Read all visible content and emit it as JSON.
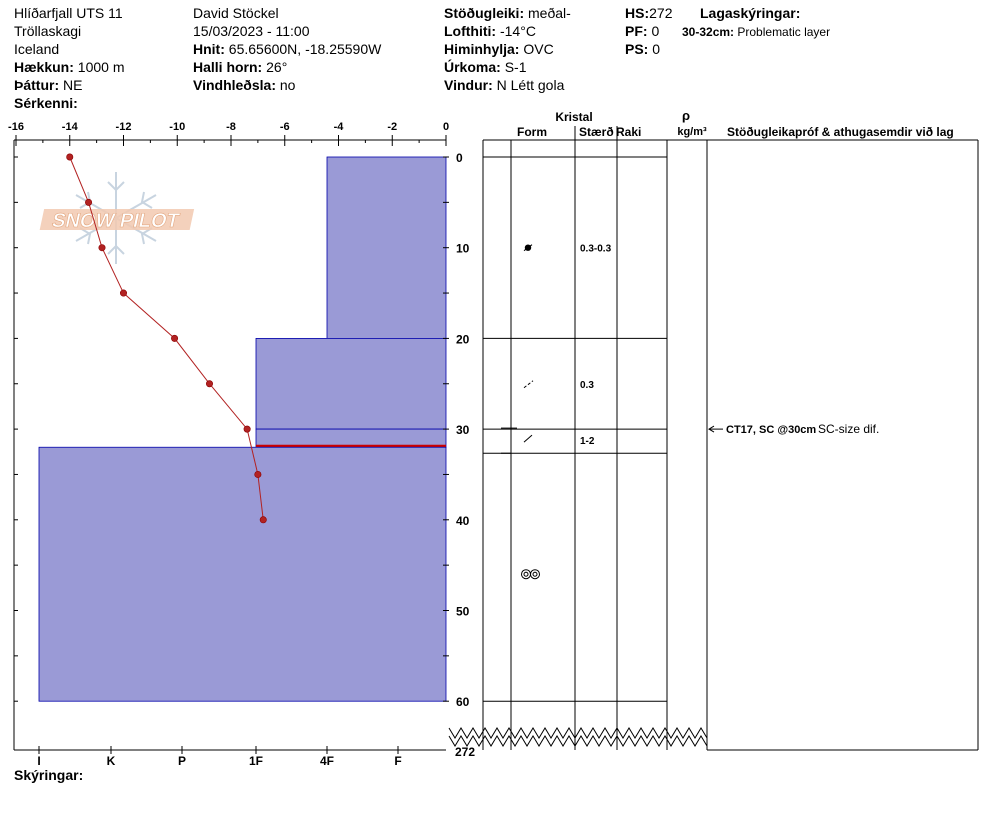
{
  "header": {
    "location": "Hlíðarfjall UTS 11",
    "region": "Tröllaskagi",
    "country": "Iceland",
    "elevation_label": "Hækkun:",
    "elevation_value": "1000 m",
    "aspect_label": "Þáttur:",
    "aspect_value": "NE",
    "features_label": "Sérkenni:",
    "features_value": "",
    "observer": "David Stöckel",
    "datetime": "15/03/2023 - 11:00",
    "coords_label": "Hnit:",
    "coords_value": "65.65600N, -18.25590W",
    "slope_label": "Halli horn:",
    "slope_value": "26°",
    "wind_loading_label": "Vindhleðsla:",
    "wind_loading_value": "no",
    "stability_label": "Stöðugleiki:",
    "stability_value": "meðal-",
    "airtemp_label": "Lofthiti:",
    "airtemp_value": "-14°C",
    "sky_label": "Himinhylja:",
    "sky_value": "OVC",
    "precip_label": "Úrkoma:",
    "precip_value": "S-1",
    "wind_label": "Vindur:",
    "wind_value": "N Létt gola",
    "hs_label": "HS:",
    "hs_value": "272",
    "pf_label": "PF:",
    "pf_value": "0",
    "ps_label": "PS:",
    "ps_value": "0",
    "layer_notes_title": "Lagaskýringar:",
    "layer_note_range": "30-32cm:",
    "layer_note_text": "Problematic layer"
  },
  "watermark": "SNOW PILOT",
  "footer": {
    "legend_label": "Skýringar:"
  },
  "columns": {
    "crystal_title": "Kristal",
    "form": "Form",
    "size": "Stærð",
    "moisture": "Raki",
    "density_symbol": "ρ",
    "density_unit": "kg/m³",
    "remarks": "Stöðugleikapróf & athugasemdir við lag"
  },
  "colors": {
    "layer_fill": "#9a9ad6",
    "layer_stroke": "#0000aa",
    "temp_line": "#b22222",
    "problem_layer": "#cc0000"
  },
  "chart_data": {
    "type": "line",
    "temperature_axis": {
      "ticks": [
        -16,
        -14,
        -12,
        -10,
        -8,
        -6,
        -4,
        -2,
        0
      ],
      "range": [
        -16,
        0
      ]
    },
    "depth_axis": {
      "ticks": [
        0,
        10,
        20,
        30,
        40,
        50,
        60
      ],
      "range": [
        0,
        60
      ],
      "bottom_label": "272"
    },
    "hardness_axis": {
      "ticks": [
        "I",
        "K",
        "P",
        "1F",
        "4F",
        "F"
      ]
    },
    "temperature_profile": {
      "depth_cm": [
        0,
        5,
        10,
        15,
        20,
        25,
        30,
        35,
        40
      ],
      "temp_c": [
        -14.0,
        -13.3,
        -12.8,
        -12.0,
        -10.1,
        -8.8,
        -7.4,
        -7.0,
        -6.8
      ]
    },
    "layers": [
      {
        "top": 0,
        "bottom": 20,
        "hardness": "4F",
        "form": "rounded",
        "size": "0.3-0.3"
      },
      {
        "top": 20,
        "bottom": 30,
        "hardness": "1F",
        "form": "decomposing",
        "size": "0.3"
      },
      {
        "top": 30,
        "bottom": 32,
        "hardness": "1F",
        "form": "faceted",
        "size": "1-2",
        "problematic": true
      },
      {
        "top": 32,
        "bottom": 60,
        "hardness": "I",
        "form": "melt-freeze",
        "size": ""
      }
    ],
    "stability_tests": [
      {
        "depth": 30,
        "result": "CT17, SC @30cm",
        "comment": "SC-size dif."
      }
    ]
  }
}
